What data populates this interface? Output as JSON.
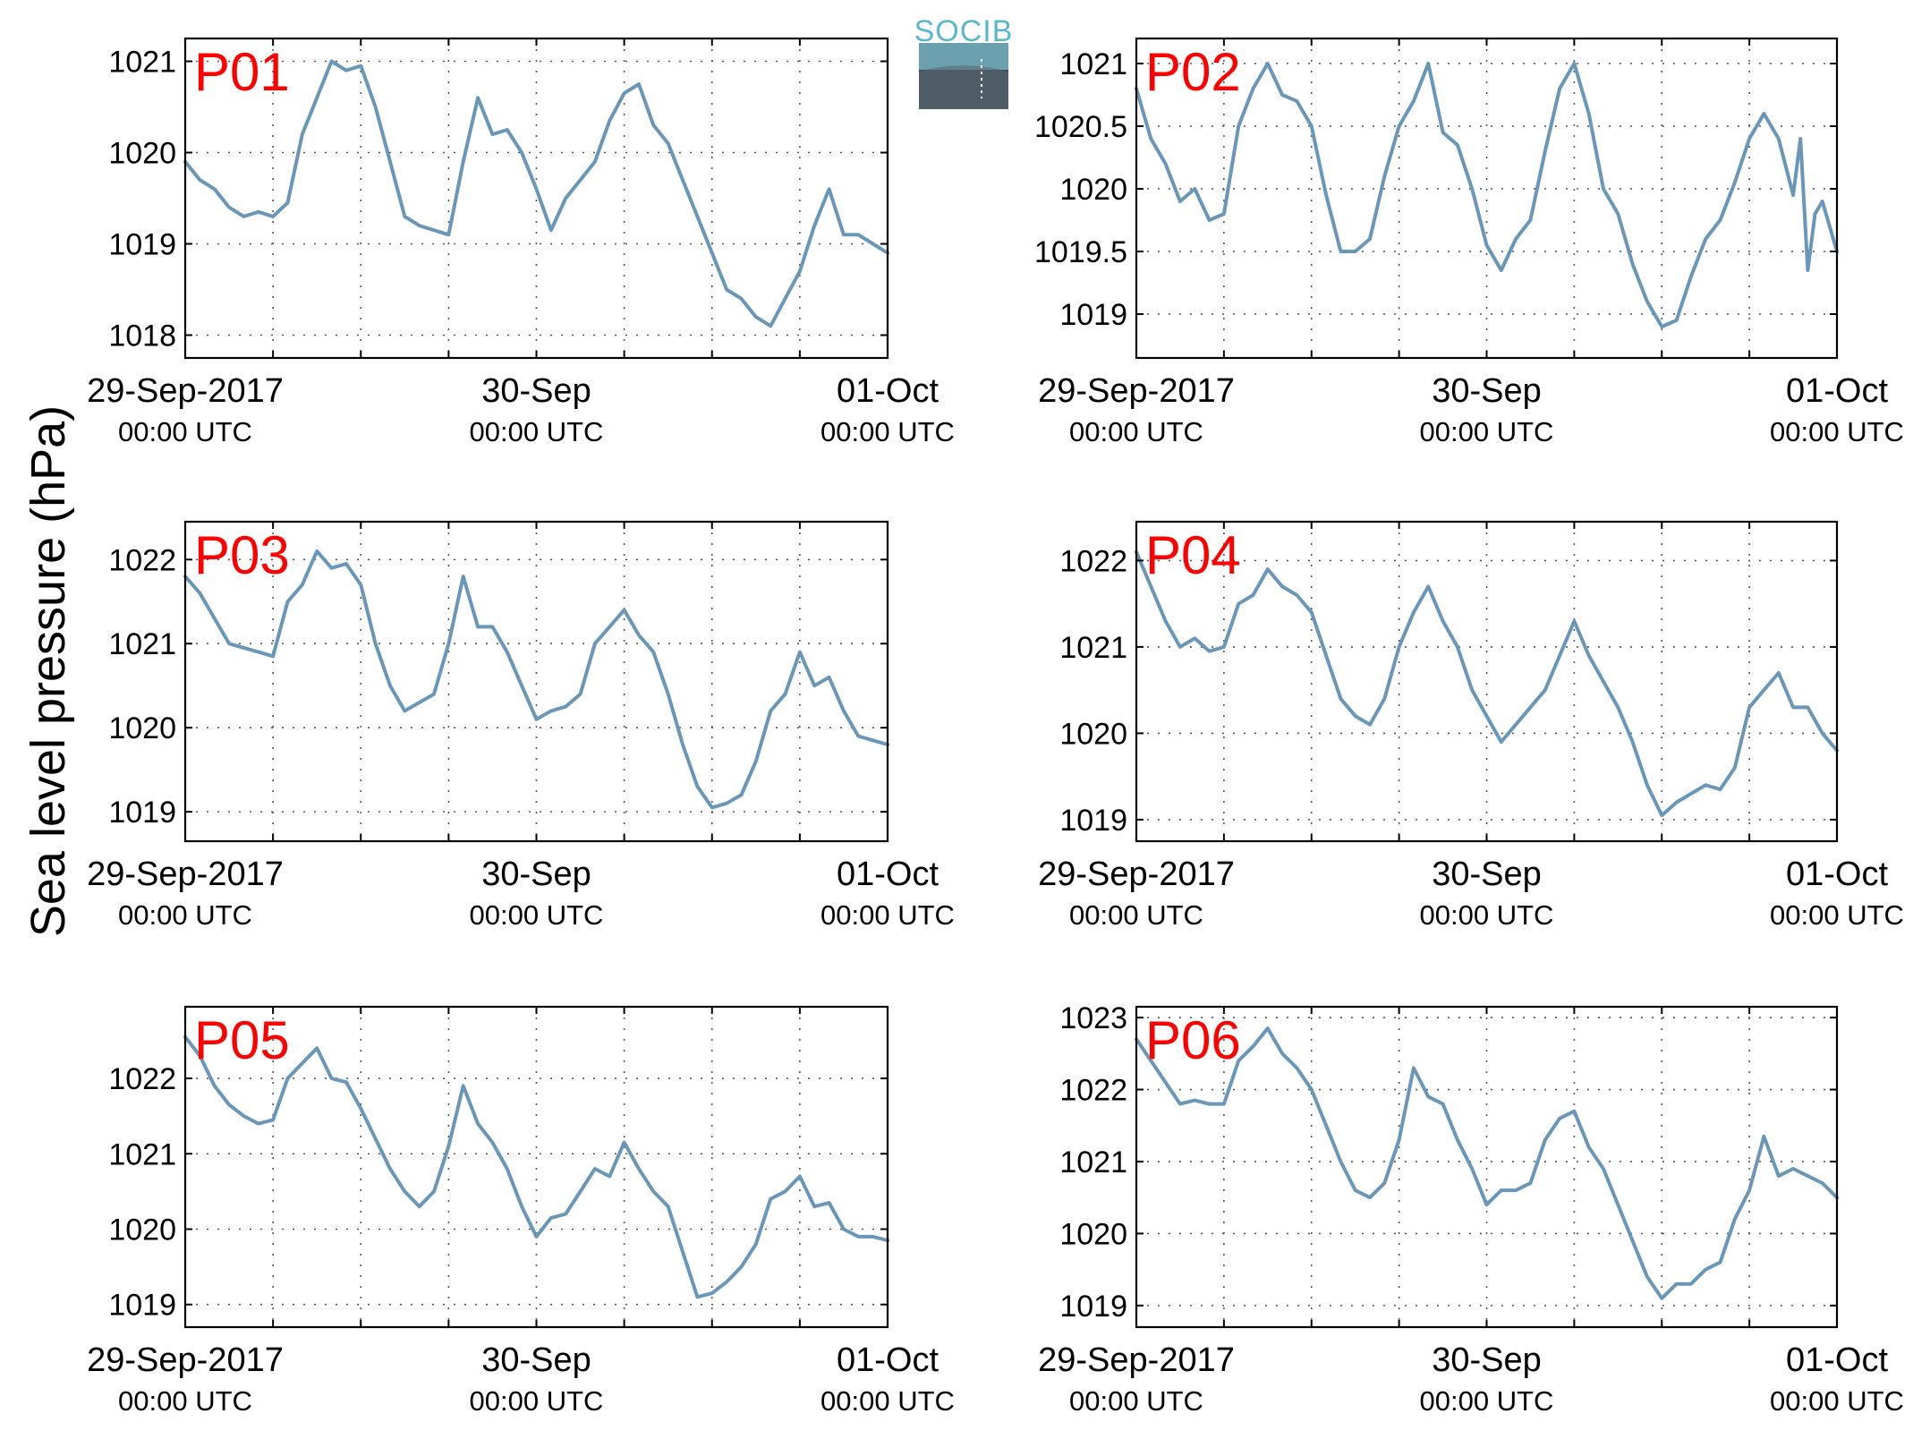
{
  "figure": {
    "ylabel": "Sea level pressure (hPa)",
    "logo_text": "SOCIB"
  },
  "colors": {
    "series": "#6a97b8",
    "panel_label": "#ff0000",
    "logo_accent": "#5bb8cc",
    "logo_dark": "#3c4852"
  },
  "chart_data": [
    {
      "type": "line",
      "panel": "P01",
      "x_ticks": [
        {
          "date": "29-Sep-2017",
          "time": "00:00 UTC"
        },
        {
          "date": "30-Sep",
          "time": "00:00 UTC"
        },
        {
          "date": "01-Oct",
          "time": "00:00 UTC"
        }
      ],
      "x_range_hours": [
        0,
        48
      ],
      "ylim": [
        1017.75,
        1021.25
      ],
      "yticks": [
        1018,
        1019,
        1020,
        1021
      ],
      "ytick_labels": [
        "1018",
        "1019",
        "1020",
        "1021"
      ],
      "grid": true,
      "series": [
        {
          "x": [
            0,
            1,
            2,
            3,
            4,
            5,
            6,
            7,
            8,
            9,
            10,
            11,
            12,
            13,
            14,
            15,
            16,
            17,
            18,
            19,
            20,
            21,
            22,
            23,
            24,
            25,
            26,
            27,
            28,
            29,
            30,
            31,
            32,
            33,
            34,
            35,
            36,
            37,
            38,
            39,
            40,
            41,
            42,
            43,
            44,
            45,
            46,
            47,
            48
          ],
          "y": [
            1019.9,
            1019.7,
            1019.6,
            1019.4,
            1019.3,
            1019.35,
            1019.3,
            1019.45,
            1020.2,
            1020.6,
            1021.0,
            1020.9,
            1020.95,
            1020.5,
            1019.9,
            1019.3,
            1019.2,
            1019.15,
            1019.1,
            1019.9,
            1020.6,
            1020.2,
            1020.25,
            1020.0,
            1019.6,
            1019.15,
            1019.5,
            1019.7,
            1019.9,
            1020.35,
            1020.65,
            1020.75,
            1020.3,
            1020.1,
            1019.7,
            1019.3,
            1018.9,
            1018.5,
            1018.4,
            1018.2,
            1018.1,
            1018.4,
            1018.7,
            1019.2,
            1019.6,
            1019.1,
            1019.1,
            1019.0,
            1018.9
          ]
        }
      ]
    },
    {
      "type": "line",
      "panel": "P02",
      "x_ticks": [
        {
          "date": "29-Sep-2017",
          "time": "00:00 UTC"
        },
        {
          "date": "30-Sep",
          "time": "00:00 UTC"
        },
        {
          "date": "01-Oct",
          "time": "00:00 UTC"
        }
      ],
      "x_range_hours": [
        0,
        48
      ],
      "ylim": [
        1018.65,
        1021.2
      ],
      "yticks": [
        1019,
        1019.5,
        1020,
        1020.5,
        1021
      ],
      "ytick_labels": [
        "1019",
        "1019.5",
        "1020",
        "1020.5",
        "1021"
      ],
      "grid": true,
      "series": [
        {
          "x": [
            0,
            1,
            2,
            3,
            4,
            5,
            6,
            7,
            8,
            9,
            10,
            11,
            12,
            13,
            14,
            15,
            16,
            17,
            18,
            19,
            20,
            21,
            22,
            23,
            24,
            25,
            26,
            27,
            28,
            29,
            30,
            31,
            32,
            33,
            34,
            35,
            36,
            37,
            38,
            39,
            40,
            41,
            42,
            43,
            44,
            45,
            45.5,
            46,
            46.5,
            47,
            48
          ],
          "y": [
            1020.8,
            1020.4,
            1020.2,
            1019.9,
            1020.0,
            1019.75,
            1019.8,
            1020.5,
            1020.8,
            1021.0,
            1020.75,
            1020.7,
            1020.5,
            1019.95,
            1019.5,
            1019.5,
            1019.6,
            1020.1,
            1020.5,
            1020.7,
            1021.0,
            1020.45,
            1020.35,
            1020.0,
            1019.55,
            1019.35,
            1019.6,
            1019.75,
            1020.3,
            1020.8,
            1021.0,
            1020.6,
            1020.0,
            1019.8,
            1019.4,
            1019.1,
            1018.9,
            1018.95,
            1019.3,
            1019.6,
            1019.75,
            1020.05,
            1020.4,
            1020.6,
            1020.4,
            1019.95,
            1020.4,
            1019.35,
            1019.8,
            1019.9,
            1019.5
          ]
        }
      ]
    },
    {
      "type": "line",
      "panel": "P03",
      "x_ticks": [
        {
          "date": "29-Sep-2017",
          "time": "00:00 UTC"
        },
        {
          "date": "30-Sep",
          "time": "00:00 UTC"
        },
        {
          "date": "01-Oct",
          "time": "00:00 UTC"
        }
      ],
      "x_range_hours": [
        0,
        48
      ],
      "ylim": [
        1018.65,
        1022.45
      ],
      "yticks": [
        1019,
        1020,
        1021,
        1022
      ],
      "ytick_labels": [
        "1019",
        "1020",
        "1021",
        "1022"
      ],
      "grid": true,
      "series": [
        {
          "x": [
            0,
            1,
            2,
            3,
            4,
            5,
            6,
            7,
            8,
            9,
            10,
            11,
            12,
            13,
            14,
            15,
            16,
            17,
            18,
            19,
            20,
            21,
            22,
            23,
            24,
            25,
            26,
            27,
            28,
            29,
            30,
            31,
            32,
            33,
            34,
            35,
            36,
            37,
            38,
            39,
            40,
            41,
            42,
            43,
            44,
            45,
            46,
            47,
            48
          ],
          "y": [
            1021.8,
            1021.6,
            1021.3,
            1021.0,
            1020.95,
            1020.9,
            1020.85,
            1021.5,
            1021.7,
            1022.1,
            1021.9,
            1021.95,
            1021.7,
            1021.0,
            1020.5,
            1020.2,
            1020.3,
            1020.4,
            1021.0,
            1021.8,
            1021.2,
            1021.2,
            1020.9,
            1020.5,
            1020.1,
            1020.2,
            1020.25,
            1020.4,
            1021.0,
            1021.2,
            1021.4,
            1021.1,
            1020.9,
            1020.4,
            1019.8,
            1019.3,
            1019.05,
            1019.1,
            1019.2,
            1019.6,
            1020.2,
            1020.4,
            1020.9,
            1020.5,
            1020.6,
            1020.2,
            1019.9,
            1019.85,
            1019.8
          ]
        }
      ]
    },
    {
      "type": "line",
      "panel": "P04",
      "x_ticks": [
        {
          "date": "29-Sep-2017",
          "time": "00:00 UTC"
        },
        {
          "date": "30-Sep",
          "time": "00:00 UTC"
        },
        {
          "date": "01-Oct",
          "time": "00:00 UTC"
        }
      ],
      "x_range_hours": [
        0,
        48
      ],
      "ylim": [
        1018.75,
        1022.45
      ],
      "yticks": [
        1019,
        1020,
        1021,
        1022
      ],
      "ytick_labels": [
        "1019",
        "1020",
        "1021",
        "1022"
      ],
      "grid": true,
      "series": [
        {
          "x": [
            0,
            1,
            2,
            3,
            4,
            5,
            6,
            7,
            8,
            9,
            10,
            11,
            12,
            13,
            14,
            15,
            16,
            17,
            18,
            19,
            20,
            21,
            22,
            23,
            24,
            25,
            26,
            27,
            28,
            29,
            30,
            31,
            32,
            33,
            34,
            35,
            36,
            37,
            38,
            39,
            40,
            41,
            42,
            43,
            44,
            45,
            46,
            47,
            48
          ],
          "y": [
            1022.1,
            1021.7,
            1021.3,
            1021.0,
            1021.1,
            1020.95,
            1021.0,
            1021.5,
            1021.6,
            1021.9,
            1021.7,
            1021.6,
            1021.4,
            1020.9,
            1020.4,
            1020.2,
            1020.1,
            1020.4,
            1021.0,
            1021.4,
            1021.7,
            1021.3,
            1021.0,
            1020.5,
            1020.2,
            1019.9,
            1020.1,
            1020.3,
            1020.5,
            1020.9,
            1021.3,
            1020.9,
            1020.6,
            1020.3,
            1019.9,
            1019.4,
            1019.05,
            1019.2,
            1019.3,
            1019.4,
            1019.35,
            1019.6,
            1020.3,
            1020.5,
            1020.7,
            1020.3,
            1020.3,
            1020.0,
            1019.8
          ]
        }
      ]
    },
    {
      "type": "line",
      "panel": "P05",
      "x_ticks": [
        {
          "date": "29-Sep-2017",
          "time": "00:00 UTC"
        },
        {
          "date": "30-Sep",
          "time": "00:00 UTC"
        },
        {
          "date": "01-Oct",
          "time": "00:00 UTC"
        }
      ],
      "x_range_hours": [
        0,
        48
      ],
      "ylim": [
        1018.7,
        1022.95
      ],
      "yticks": [
        1019,
        1020,
        1021,
        1022
      ],
      "ytick_labels": [
        "1019",
        "1020",
        "1021",
        "1022"
      ],
      "grid": true,
      "series": [
        {
          "x": [
            0,
            1,
            2,
            3,
            4,
            5,
            6,
            7,
            8,
            9,
            10,
            11,
            12,
            13,
            14,
            15,
            16,
            17,
            18,
            19,
            20,
            21,
            22,
            23,
            24,
            25,
            26,
            27,
            28,
            29,
            30,
            31,
            32,
            33,
            34,
            35,
            36,
            37,
            38,
            39,
            40,
            41,
            42,
            43,
            44,
            45,
            46,
            47,
            48
          ],
          "y": [
            1022.55,
            1022.3,
            1021.9,
            1021.65,
            1021.5,
            1021.4,
            1021.45,
            1022.0,
            1022.2,
            1022.4,
            1022.0,
            1021.95,
            1021.6,
            1021.2,
            1020.8,
            1020.5,
            1020.3,
            1020.5,
            1021.1,
            1021.9,
            1021.4,
            1021.15,
            1020.8,
            1020.3,
            1019.9,
            1020.15,
            1020.2,
            1020.5,
            1020.8,
            1020.7,
            1021.15,
            1020.8,
            1020.5,
            1020.3,
            1019.7,
            1019.1,
            1019.15,
            1019.3,
            1019.5,
            1019.8,
            1020.4,
            1020.5,
            1020.7,
            1020.3,
            1020.35,
            1020.0,
            1019.9,
            1019.9,
            1019.85
          ]
        }
      ]
    },
    {
      "type": "line",
      "panel": "P06",
      "x_ticks": [
        {
          "date": "29-Sep-2017",
          "time": "00:00 UTC"
        },
        {
          "date": "30-Sep",
          "time": "00:00 UTC"
        },
        {
          "date": "01-Oct",
          "time": "00:00 UTC"
        }
      ],
      "x_range_hours": [
        0,
        48
      ],
      "ylim": [
        1018.7,
        1023.15
      ],
      "yticks": [
        1019,
        1020,
        1021,
        1022,
        1023
      ],
      "ytick_labels": [
        "1019",
        "1020",
        "1021",
        "1022",
        "1023"
      ],
      "grid": true,
      "series": [
        {
          "x": [
            0,
            1,
            2,
            3,
            4,
            5,
            6,
            7,
            8,
            9,
            10,
            11,
            12,
            13,
            14,
            15,
            16,
            17,
            18,
            19,
            20,
            21,
            22,
            23,
            24,
            25,
            26,
            27,
            28,
            29,
            30,
            31,
            32,
            33,
            34,
            35,
            36,
            37,
            38,
            39,
            40,
            41,
            42,
            43,
            44,
            45,
            46,
            47,
            48
          ],
          "y": [
            1022.7,
            1022.4,
            1022.1,
            1021.8,
            1021.85,
            1021.8,
            1021.8,
            1022.4,
            1022.6,
            1022.85,
            1022.5,
            1022.3,
            1022.0,
            1021.5,
            1021.0,
            1020.6,
            1020.5,
            1020.7,
            1021.3,
            1022.3,
            1021.9,
            1021.8,
            1021.3,
            1020.9,
            1020.4,
            1020.6,
            1020.6,
            1020.7,
            1021.3,
            1021.6,
            1021.7,
            1021.2,
            1020.9,
            1020.4,
            1019.9,
            1019.4,
            1019.1,
            1019.3,
            1019.3,
            1019.5,
            1019.6,
            1020.2,
            1020.6,
            1021.35,
            1020.8,
            1020.9,
            1020.8,
            1020.7,
            1020.5
          ]
        }
      ]
    }
  ]
}
